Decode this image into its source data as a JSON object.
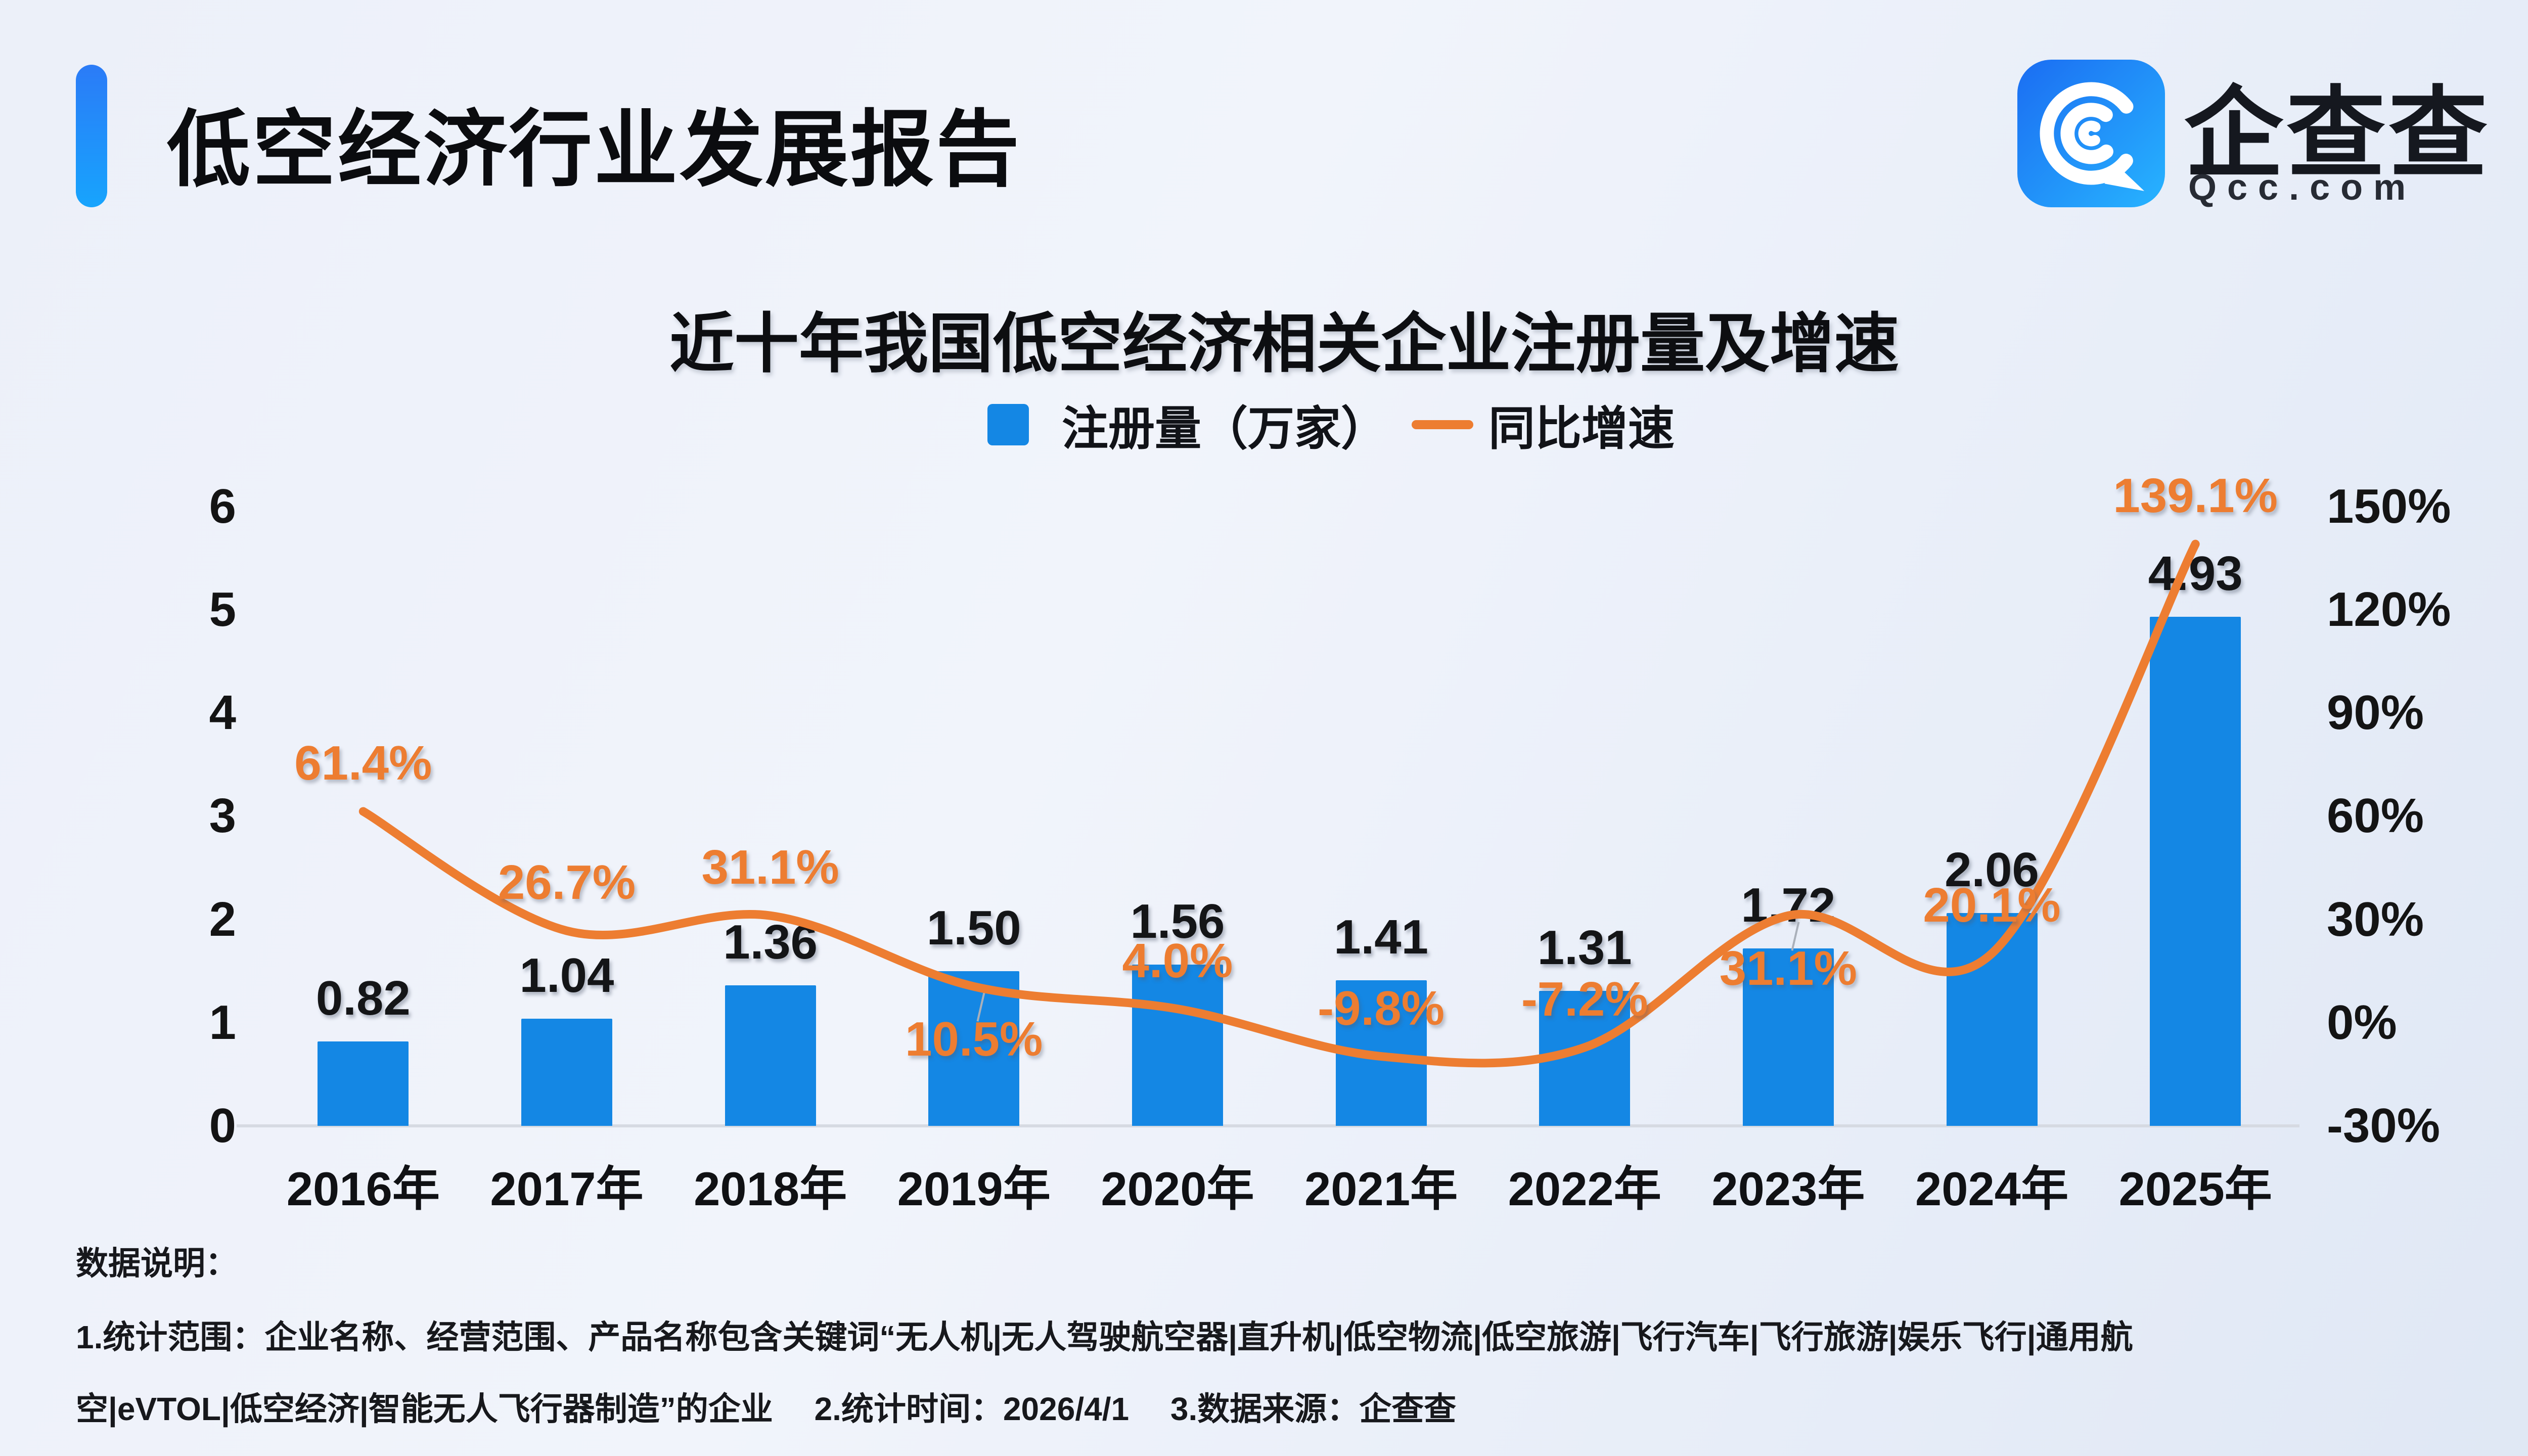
{
  "header": {
    "title": "低空经济行业发展报告"
  },
  "logo": {
    "name": "企查查",
    "domain": "Qcc.com"
  },
  "chart_data": {
    "type": "bar+line",
    "title": "近十年我国低空经济相关企业注册量及增速",
    "legend": [
      {
        "label": "注册量（万家）",
        "type": "bar",
        "color": "#1487e4"
      },
      {
        "label": "同比增速",
        "type": "line",
        "color": "#ed7d31"
      }
    ],
    "categories": [
      "2016年",
      "2017年",
      "2018年",
      "2019年",
      "2020年",
      "2021年",
      "2022年",
      "2023年",
      "2024年",
      "2025年"
    ],
    "series": [
      {
        "name": "注册量（万家）",
        "type": "bar",
        "values": [
          0.82,
          1.04,
          1.36,
          1.5,
          1.56,
          1.41,
          1.31,
          1.72,
          2.06,
          4.93
        ],
        "labels": [
          "0.82",
          "1.04",
          "1.36",
          "1.50",
          "1.56",
          "1.41",
          "1.31",
          "1.72",
          "2.06",
          "4.93"
        ]
      },
      {
        "name": "同比增速",
        "type": "line",
        "values": [
          61.4,
          26.7,
          31.1,
          10.5,
          4.0,
          -9.8,
          -7.2,
          31.1,
          20.1,
          139.1
        ],
        "labels": [
          "61.4%",
          "26.7%",
          "31.1%",
          "10.5%",
          "4.0%",
          "-9.8%",
          "-7.2%",
          "31.1%",
          "20.1%",
          "139.1%"
        ]
      }
    ],
    "left_axis": {
      "min": 0,
      "max": 6,
      "ticks": [
        {
          "label": "0",
          "value": 0
        },
        {
          "label": "1",
          "value": 1
        },
        {
          "label": "2",
          "value": 2
        },
        {
          "label": "3",
          "value": 3
        },
        {
          "label": "4",
          "value": 4
        },
        {
          "label": "5",
          "value": 5
        },
        {
          "label": "6",
          "value": 6
        }
      ]
    },
    "right_axis": {
      "min": -30,
      "max": 150,
      "ticks": [
        {
          "label": "-30%",
          "value": -30
        },
        {
          "label": "0%",
          "value": 0
        },
        {
          "label": "30%",
          "value": 30
        },
        {
          "label": "60%",
          "value": 60
        },
        {
          "label": "90%",
          "value": 90
        },
        {
          "label": "120%",
          "value": 120
        },
        {
          "label": "150%",
          "value": 150
        }
      ]
    },
    "layout": {
      "grid": false,
      "legend_position": "top-center",
      "growth_label_side": [
        "above",
        "above",
        "above",
        "below",
        "above",
        "above",
        "above",
        "below",
        "above",
        "above"
      ]
    }
  },
  "colors": {
    "bar": "#1487e4",
    "line": "#ed7d31",
    "growth_label": "#ed7d31",
    "axis_line": "#d6dae2",
    "accent_start": "#2b7bf7",
    "accent_end": "#17a4fd"
  },
  "footer": {
    "heading": "数据说明：",
    "line1": "1.统计范围：企业名称、经营范围、产品名称包含关键词“无人机|无人驾驶航空器|直升机|低空物流|低空旅游|飞行汽车|飞行旅游|娱乐飞行|通用航",
    "line2": "空|eVTOL|低空经济|智能无人飞行器制造”的企业　 2.统计时间：2026/4/1　 3.数据来源：企查查"
  }
}
